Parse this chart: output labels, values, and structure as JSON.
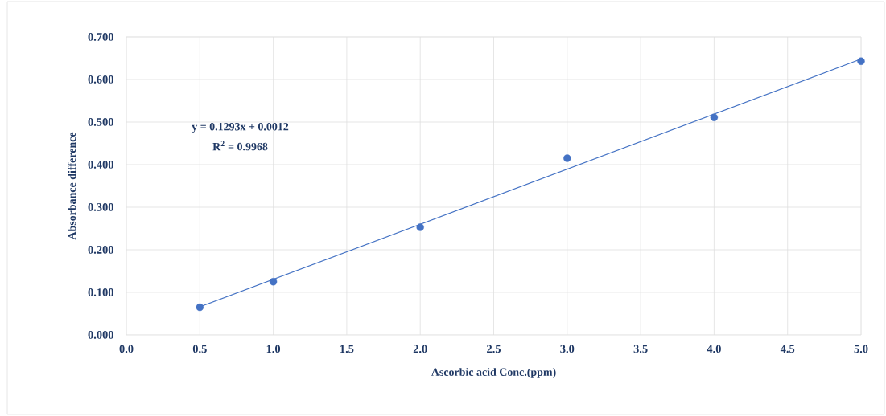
{
  "chart_data": {
    "type": "scatter",
    "xlabel": "Ascorbic acid Conc.(ppm)",
    "ylabel": "Absorbance difference",
    "x": [
      0.5,
      1.0,
      2.0,
      3.0,
      4.0,
      5.0
    ],
    "series": [
      {
        "color": "#4472c4",
        "values": [
          0.065,
          0.125,
          0.253,
          0.415,
          0.511,
          0.643
        ],
        "marker": "circle"
      },
      {
        "type": "line",
        "color": "#4472c4",
        "x": [
          0.5,
          5.0
        ],
        "values": [
          0.066,
          0.648
        ],
        "marker": "none",
        "line_style": "solid"
      }
    ],
    "xlim": [
      0,
      5
    ],
    "ylim": [
      0,
      0.7
    ],
    "xticks": [
      {
        "value": 0,
        "label": "0.0"
      },
      {
        "value": 0.5,
        "label": "0.5"
      },
      {
        "value": 1,
        "label": "1.0"
      },
      {
        "value": 1.5,
        "label": "1.5"
      },
      {
        "value": 2,
        "label": "2.0"
      },
      {
        "value": 2.5,
        "label": "2.5"
      },
      {
        "value": 3,
        "label": "3.0"
      },
      {
        "value": 3.5,
        "label": "3.5"
      },
      {
        "value": 4,
        "label": "4.0"
      },
      {
        "value": 4.5,
        "label": "4.5"
      },
      {
        "value": 5,
        "label": "5.0"
      }
    ],
    "yticks": [
      {
        "value": 0,
        "label": "0.000"
      },
      {
        "value": 0.1,
        "label": "0.100"
      },
      {
        "value": 0.2,
        "label": "0.200"
      },
      {
        "value": 0.3,
        "label": "0.300"
      },
      {
        "value": 0.4,
        "label": "0.400"
      },
      {
        "value": 0.5,
        "label": "0.500"
      },
      {
        "value": 0.6,
        "label": "0.600"
      },
      {
        "value": 0.7,
        "label": "0.700"
      }
    ],
    "grid": true,
    "annotations": [
      "y = 0.1293x + 0.0012",
      "R$^{2}$ = 0.9968"
    ]
  }
}
